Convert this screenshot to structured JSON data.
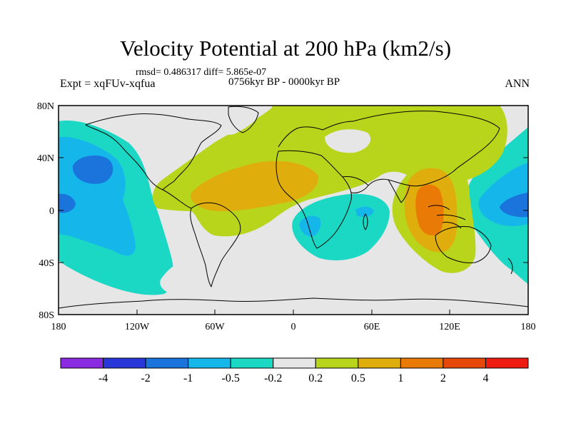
{
  "header": {
    "title": "Velocity Potential at 200 hPa (km2/s)",
    "stats": "rmsd= 0.486317 diff= 5.865e-07",
    "experiment": "Expt = xqFUv-xqfua",
    "period": "0756kyr BP - 0000kyr BP",
    "season": "ANN"
  },
  "map": {
    "projection": "cylindrical equidistant",
    "lat_labels": [
      "80N",
      "40N",
      "0",
      "40S",
      "80S"
    ],
    "lon_labels": [
      "180",
      "120W",
      "60W",
      "0",
      "60E",
      "120E",
      "180"
    ]
  },
  "colorbar": {
    "colors": [
      "#8a2be2",
      "#2a37d8",
      "#1a74dc",
      "#15b6ea",
      "#1ad8c4",
      "#e6e6e6",
      "#b8d51c",
      "#e0ae0c",
      "#ea7a06",
      "#e6480a",
      "#ee1c10"
    ],
    "labels": [
      "-4",
      "-2",
      "-1",
      "-0.5",
      "-0.2",
      "0.2",
      "0.5",
      "1",
      "2",
      "4"
    ]
  },
  "palette": {
    "background": "#e6e6e6",
    "coast": "#000000"
  }
}
